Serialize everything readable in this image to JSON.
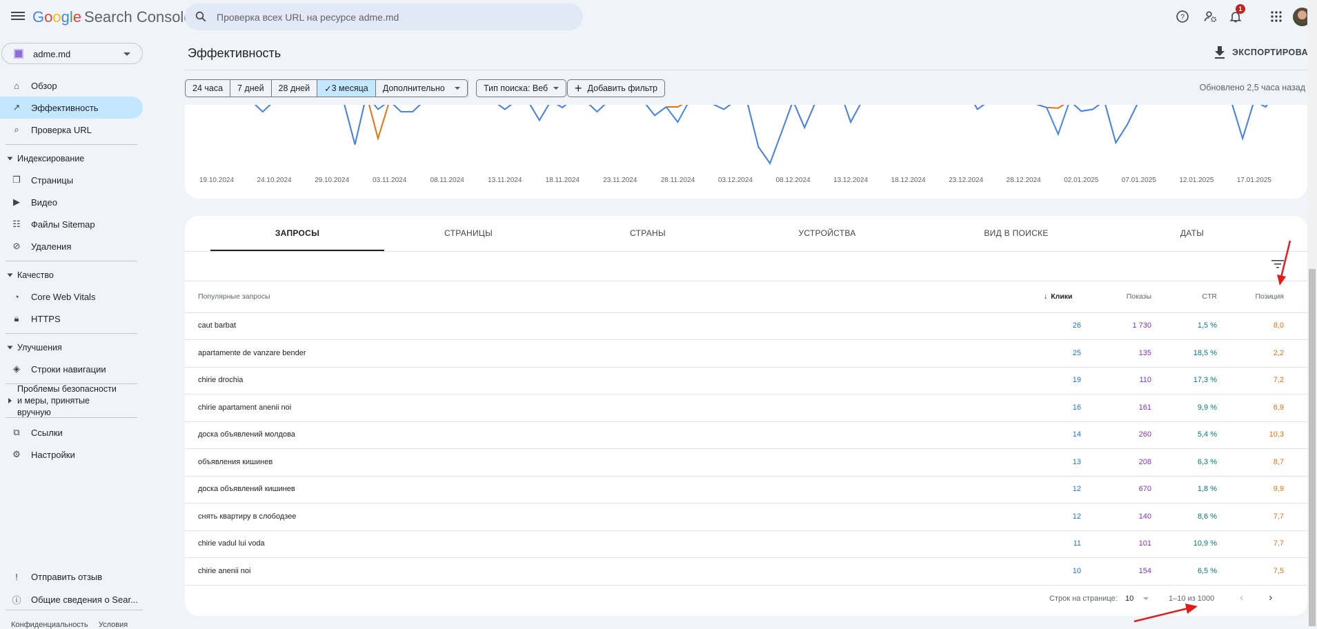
{
  "app": {
    "logo_google": "Google",
    "logo_product": "Search Console"
  },
  "search": {
    "placeholder": "Проверка всех URL на ресурсе adme.md"
  },
  "topbar": {
    "notification_count": "1",
    "icons": [
      "help-icon",
      "admin-icon",
      "bell-icon",
      "apps-icon",
      "avatar"
    ]
  },
  "property": {
    "name": "adme.md"
  },
  "sidebar": {
    "items": [
      {
        "type": "item",
        "label": "Обзор",
        "icon": "⌂",
        "name": "home-icon"
      },
      {
        "type": "item",
        "label": "Эффективность",
        "icon": "↗",
        "name": "trending-icon",
        "active": true
      },
      {
        "type": "item",
        "label": "Проверка URL",
        "icon": "⌕",
        "name": "search-icon"
      },
      {
        "type": "divider"
      },
      {
        "type": "section",
        "label": "Индексирование"
      },
      {
        "type": "item",
        "label": "Страницы",
        "icon": "❐",
        "name": "pages-icon"
      },
      {
        "type": "item",
        "label": "Видео",
        "icon": "▶",
        "name": "video-icon"
      },
      {
        "type": "item",
        "label": "Файлы Sitemap",
        "icon": "☷",
        "name": "sitemap-icon"
      },
      {
        "type": "item",
        "label": "Удаления",
        "icon": "⊘",
        "name": "removals-icon"
      },
      {
        "type": "divider"
      },
      {
        "type": "section",
        "label": "Качество"
      },
      {
        "type": "item",
        "label": "Core Web Vitals",
        "icon": "◔",
        "name": "speed-icon"
      },
      {
        "type": "item",
        "label": "HTTPS",
        "icon": "🔒︎",
        "name": "lock-icon"
      },
      {
        "type": "divider"
      },
      {
        "type": "section",
        "label": "Улучшения"
      },
      {
        "type": "item",
        "label": "Строки навигации",
        "icon": "◈",
        "name": "layers-icon"
      },
      {
        "type": "divider"
      },
      {
        "type": "section2",
        "label": "Проблемы безопасности и меры, принятые вручную"
      },
      {
        "type": "divider"
      },
      {
        "type": "item",
        "label": "Ссылки",
        "icon": "⧉",
        "name": "links-icon"
      },
      {
        "type": "item",
        "label": "Настройки",
        "icon": "⚙",
        "name": "settings-icon"
      }
    ],
    "bottom": [
      {
        "label": "Отправить отзыв",
        "icon": "!",
        "name": "feedback-icon"
      },
      {
        "label": "Общие сведения о Sear...",
        "icon": "ⓘ",
        "name": "info-icon"
      }
    ],
    "footer_privacy": "Конфиденциальность",
    "footer_terms": "Условия"
  },
  "page": {
    "title": "Эффективность",
    "export_label": "ЭКСПОРТИРОВАТЬ",
    "date_chips": [
      "24 часа",
      "7 дней",
      "28 дней",
      "3 месяца",
      "Дополнительно"
    ],
    "selected_chip": "3 месяца",
    "search_type": "Тип поиска: Веб",
    "add_filter": "Добавить фильтр",
    "updated": "Обновлено 2,5 часа назад"
  },
  "chart_data": {
    "type": "line",
    "x_start": "19.10.2024",
    "x_ticks": [
      "19.10.2024",
      "24.10.2024",
      "29.10.2024",
      "03.11.2024",
      "08.11.2024",
      "13.11.2024",
      "18.11.2024",
      "23.11.2024",
      "28.11.2024",
      "03.12.2024",
      "08.12.2024",
      "13.12.2024",
      "18.12.2024",
      "23.12.2024",
      "28.12.2024",
      "02.01.2025",
      "07.01.2025",
      "12.01.2025",
      "17.01.2025"
    ],
    "grid": false,
    "legend": "none",
    "series": [
      {
        "color": "#4285f4",
        "values": [
          130,
          130,
          130,
          110,
          92,
          110,
          130,
          130,
          130,
          130,
          130,
          110,
          38,
          120,
          96,
          110,
          92,
          92,
          110,
          130,
          130,
          130,
          130,
          130,
          110,
          96,
          110,
          110,
          78,
          110,
          99,
          115,
          110,
          92,
          110,
          130,
          130,
          110,
          86,
          100,
          75,
          110,
          110,
          105,
          96,
          110,
          110,
          34,
          7,
          58,
          110,
          66,
          110,
          130,
          130,
          75,
          110,
          130,
          130,
          130,
          130,
          130,
          130,
          130,
          130,
          130,
          96,
          110,
          130,
          130,
          130,
          105,
          99,
          55,
          110,
          93,
          96,
          110,
          41,
          71,
          110,
          130,
          130,
          130,
          130,
          130,
          130,
          130,
          110,
          48,
          110,
          100,
          130,
          130
        ]
      },
      {
        "color": "#e8710a",
        "values": [
          130,
          130,
          130,
          110,
          92,
          110,
          130,
          130,
          130,
          130,
          130,
          110,
          38,
          120,
          48,
          110,
          92,
          92,
          110,
          130,
          130,
          130,
          130,
          130,
          110,
          96,
          110,
          110,
          78,
          110,
          99,
          115,
          110,
          92,
          110,
          130,
          130,
          110,
          86,
          100,
          100,
          110,
          110,
          105,
          96,
          110,
          110,
          34,
          7,
          58,
          110,
          66,
          110,
          130,
          130,
          75,
          110,
          130,
          130,
          130,
          130,
          130,
          130,
          130,
          130,
          130,
          96,
          110,
          130,
          130,
          130,
          105,
          99,
          98,
          110,
          93,
          96,
          110,
          41,
          71,
          110,
          130,
          130,
          130,
          130,
          130,
          130,
          130,
          110,
          48,
          110,
          100,
          130,
          130
        ]
      }
    ]
  },
  "table": {
    "tabs": [
      "ЗАПРОСЫ",
      "СТРАНИЦЫ",
      "СТРАНЫ",
      "УСТРОЙСТВА",
      "ВИД В ПОИСКЕ",
      "ДАТЫ"
    ],
    "active_tab": "ЗАПРОСЫ",
    "headers": {
      "query": "Популярные запросы",
      "clicks": "Клики",
      "impressions": "Показы",
      "ctr": "CTR",
      "position": "Позиция"
    },
    "sort_indicator": "↓",
    "colors": {
      "clicks": "#1a73e8",
      "impressions": "#8430ce",
      "ctr": "#007b83",
      "position": "#e8710a"
    },
    "rows": [
      {
        "query": "caut barbat",
        "clicks": "26",
        "impressions": "1 730",
        "ctr": "1,5 %",
        "position": "8,0"
      },
      {
        "query": "apartamente de vanzare bender",
        "clicks": "25",
        "impressions": "135",
        "ctr": "18,5 %",
        "position": "2,2"
      },
      {
        "query": "chirie drochia",
        "clicks": "19",
        "impressions": "110",
        "ctr": "17,3 %",
        "position": "7,2"
      },
      {
        "query": "chirie apartament anenii noi",
        "clicks": "16",
        "impressions": "161",
        "ctr": "9,9 %",
        "position": "6,9"
      },
      {
        "query": "доска объявлений молдова",
        "clicks": "14",
        "impressions": "260",
        "ctr": "5,4 %",
        "position": "10,3"
      },
      {
        "query": "объявления кишинев",
        "clicks": "13",
        "impressions": "208",
        "ctr": "6,3 %",
        "position": "8,7"
      },
      {
        "query": "доска объявлений кишинев",
        "clicks": "12",
        "impressions": "670",
        "ctr": "1,8 %",
        "position": "9,9"
      },
      {
        "query": "снять квартиру в слободзее",
        "clicks": "12",
        "impressions": "140",
        "ctr": "8,6 %",
        "position": "7,7"
      },
      {
        "query": "chirie vadul lui voda",
        "clicks": "11",
        "impressions": "101",
        "ctr": "10,9 %",
        "position": "7,7"
      },
      {
        "query": "chirie anenii noi",
        "clicks": "10",
        "impressions": "154",
        "ctr": "6,5 %",
        "position": "7,5"
      }
    ],
    "pagination": {
      "rows_per_page_label": "Строк на странице:",
      "rows_per_page": "10",
      "range": "1–10 из 1000"
    }
  }
}
